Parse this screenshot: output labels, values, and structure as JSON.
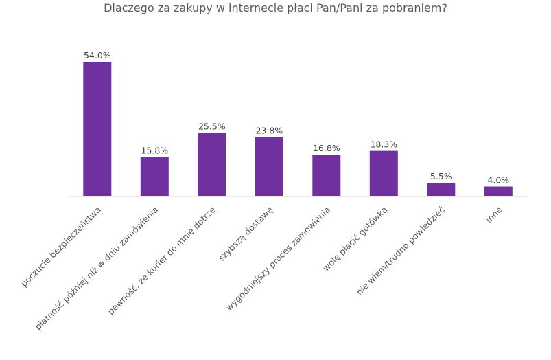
{
  "title": "Dlaczego za zakupy w internecie płaci Pan/Pani za pobraniem?",
  "colors": {
    "bar": "#7030a0",
    "axis": "#d9d9d9",
    "text": "#595959"
  },
  "chart_data": {
    "type": "bar",
    "title": "Dlaczego za zakupy w internecie płaci Pan/Pani za pobraniem?",
    "xlabel": "",
    "ylabel": "",
    "ylim": [
      0,
      60
    ],
    "grid": false,
    "legend": "none",
    "categories": [
      "poczucie bezpieczeństwa",
      "płatność później niż w dniu zamówienia",
      "pewność, że kurier do mnie dotrze",
      "szybszą dostawę",
      "wygodniejszy proces zamówienia",
      "wolę płacić gotówką",
      "nie wiem/trudno powiedzieć",
      "inne"
    ],
    "values": [
      54.0,
      15.8,
      25.5,
      23.8,
      16.8,
      18.3,
      5.5,
      4.0
    ],
    "value_labels": [
      "54.0%",
      "15.8%",
      "25.5%",
      "23.8%",
      "16.8%",
      "18.3%",
      "5.5%",
      "4.0%"
    ]
  }
}
